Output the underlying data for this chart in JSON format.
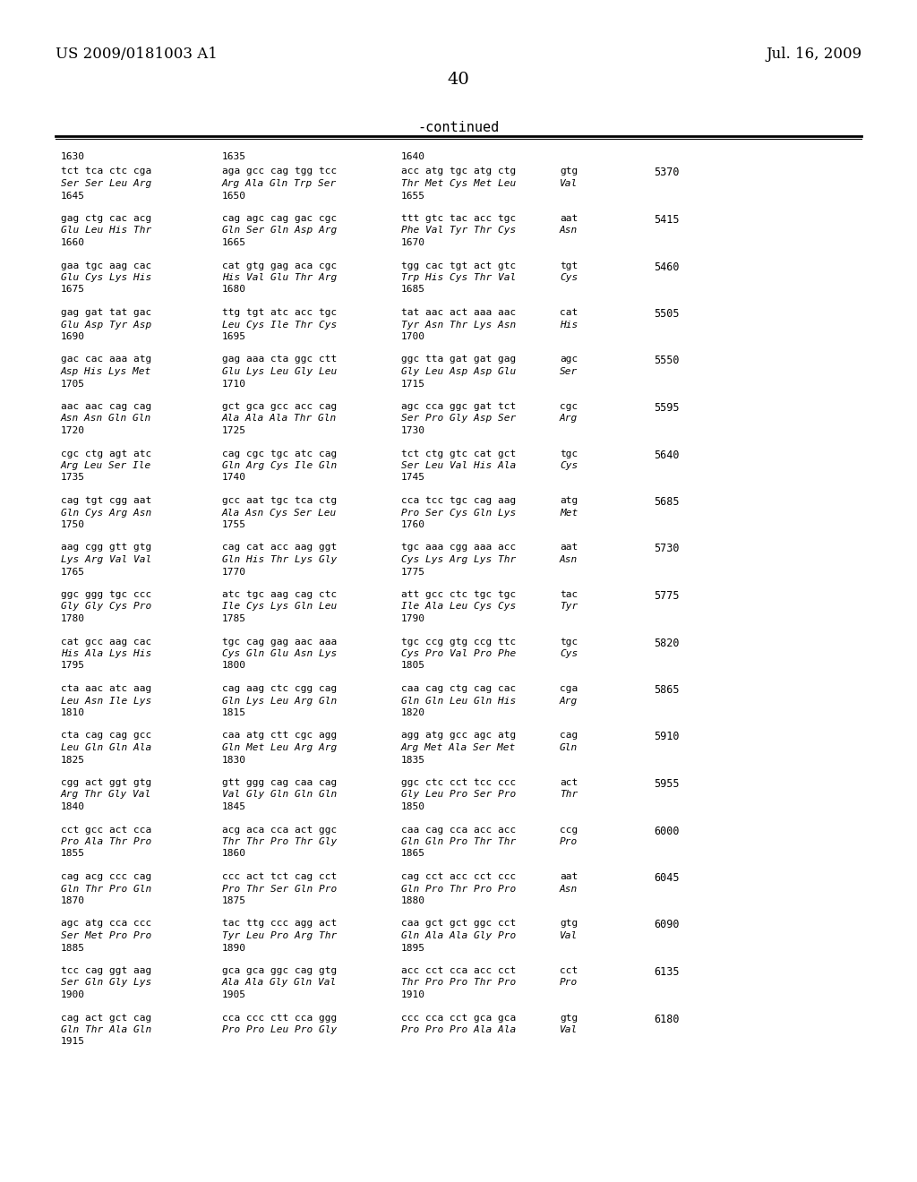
{
  "header_left": "US 2009/0181003 A1",
  "header_right": "Jul. 16, 2009",
  "page_number": "40",
  "continued_label": "-continued",
  "background_color": "#ffffff",
  "text_color": "#000000",
  "blocks": [
    {
      "pos_header": [
        "1630",
        "1635",
        "1640"
      ],
      "nuc": "tct tca ctc cga  aga gcc cag tgg tcc  acc atg tgc atg ctg  gtg",
      "aa": "Ser Ser Leu Arg  Arg Ala Gln Trp Ser  Thr Met Cys Met Leu  Val",
      "pos_footer": [
        "1645",
        "1650",
        "1655"
      ],
      "number": "5370"
    },
    {
      "pos_header": [],
      "nuc": "gag ctg cac acg  cag agc cag gac cgc  ttt gtc tac acc tgc  aat",
      "aa": "Glu Leu His Thr  Gln Ser Gln Asp Arg  Phe Val Tyr Thr Cys  Asn",
      "pos_footer": [
        "1660",
        "1665",
        "1670"
      ],
      "number": "5415"
    },
    {
      "pos_header": [],
      "nuc": "gaa tgc aag cac  cat gtg gag aca cgc  tgg cac tgt act gtc  tgt",
      "aa": "Glu Cys Lys His  His Val Glu Thr Arg  Trp His Cys Thr Val  Cys",
      "pos_footer": [
        "1675",
        "1680",
        "1685"
      ],
      "number": "5460"
    },
    {
      "pos_header": [],
      "nuc": "gag gat tat gac  ttg tgt atc acc tgc  tat aac act aaa aac  cat",
      "aa": "Glu Asp Tyr Asp  Leu Cys Ile Thr Cys  Tyr Asn Thr Lys Asn  His",
      "pos_footer": [
        "1690",
        "1695",
        "1700"
      ],
      "number": "5505"
    },
    {
      "pos_header": [],
      "nuc": "gac cac aaa atg  gag aaa cta ggc ctt  ggc tta gat gat gag  agc",
      "aa": "Asp His Lys Met  Glu Lys Leu Gly Leu  Gly Leu Asp Asp Glu  Ser",
      "pos_footer": [
        "1705",
        "1710",
        "1715"
      ],
      "number": "5550"
    },
    {
      "pos_header": [],
      "nuc": "aac aac cag cag  gct gca gcc acc cag  agc cca ggc gat tct  cgc",
      "aa": "Asn Asn Gln Gln  Ala Ala Ala Thr Gln  Ser Pro Gly Asp Ser  Arg",
      "pos_footer": [
        "1720",
        "1725",
        "1730"
      ],
      "number": "5595"
    },
    {
      "pos_header": [],
      "nuc": "cgc ctg agt atc  cag cgc tgc atc cag  tct ctg gtc cat gct  tgc",
      "aa": "Arg Leu Ser Ile  Gln Arg Cys Ile Gln  Ser Leu Val His Ala  Cys",
      "pos_footer": [
        "1735",
        "1740",
        "1745"
      ],
      "number": "5640"
    },
    {
      "pos_header": [],
      "nuc": "cag tgt cgg aat  gcc aat tgc tca ctg  cca tcc tgc cag aag  atg",
      "aa": "Gln Cys Arg Asn  Ala Asn Cys Ser Leu  Pro Ser Cys Gln Lys  Met",
      "pos_footer": [
        "1750",
        "1755",
        "1760"
      ],
      "number": "5685"
    },
    {
      "pos_header": [],
      "nuc": "aag cgg gtt gtg  cag cat acc aag ggt  tgc aaa cgg aaa acc  aat",
      "aa": "Lys Arg Val Val  Gln His Thr Lys Gly  Cys Lys Arg Lys Thr  Asn",
      "pos_footer": [
        "1765",
        "1770",
        "1775"
      ],
      "number": "5730"
    },
    {
      "pos_header": [],
      "nuc": "ggc ggg tgc ccc  atc tgc aag cag ctc  att gcc ctc tgc tgc  tac",
      "aa": "Gly Gly Cys Pro  Ile Cys Lys Gln Leu  Ile Ala Leu Cys Cys  Tyr",
      "pos_footer": [
        "1780",
        "1785",
        "1790"
      ],
      "number": "5775"
    },
    {
      "pos_header": [],
      "nuc": "cat gcc aag cac  tgc cag gag aac aaa  tgc ccg gtg ccg ttc  tgc",
      "aa": "His Ala Lys His  Cys Gln Glu Asn Lys  Cys Pro Val Pro Phe  Cys",
      "pos_footer": [
        "1795",
        "1800",
        "1805"
      ],
      "number": "5820"
    },
    {
      "pos_header": [],
      "nuc": "cta aac atc aag  cag aag ctc cgg cag  caa cag ctg cag cac  cga",
      "aa": "Leu Asn Ile Lys  Gln Lys Leu Arg Gln  Gln Gln Leu Gln His  Arg",
      "pos_footer": [
        "1810",
        "1815",
        "1820"
      ],
      "number": "5865"
    },
    {
      "pos_header": [],
      "nuc": "cta cag cag gcc  caa atg ctt cgc agg  agg atg gcc agc atg  cag",
      "aa": "Leu Gln Gln Ala  Gln Met Leu Arg Arg  Arg Met Ala Ser Met  Gln",
      "pos_footer": [
        "1825",
        "1830",
        "1835"
      ],
      "number": "5910"
    },
    {
      "pos_header": [],
      "nuc": "cgg act ggt gtg  gtt ggg cag caa cag  ggc ctc cct tcc ccc  act",
      "aa": "Arg Thr Gly Val  Val Gly Gln Gln Gln  Gly Leu Pro Ser Pro  Thr",
      "pos_footer": [
        "1840",
        "1845",
        "1850"
      ],
      "number": "5955"
    },
    {
      "pos_header": [],
      "nuc": "cct gcc act cca  acg aca cca act ggc  caa cag cca acc acc  ccg",
      "aa": "Pro Ala Thr Pro  Thr Thr Pro Thr Gly  Gln Gln Pro Thr Thr  Pro",
      "pos_footer": [
        "1855",
        "1860",
        "1865"
      ],
      "number": "6000"
    },
    {
      "pos_header": [],
      "nuc": "cag acg ccc cag  ccc act tct cag cct  cag cct acc cct ccc  aat",
      "aa": "Gln Thr Pro Gln  Pro Thr Ser Gln Pro  Gln Pro Thr Pro Pro  Asn",
      "pos_footer": [
        "1870",
        "1875",
        "1880"
      ],
      "number": "6045"
    },
    {
      "pos_header": [],
      "nuc": "agc atg cca ccc  tac ttg ccc agg act  caa gct gct ggc cct  gtg",
      "aa": "Ser Met Pro Pro  Tyr Leu Pro Arg Thr  Gln Ala Ala Gly Pro  Val",
      "pos_footer": [
        "1885",
        "1890",
        "1895"
      ],
      "number": "6090"
    },
    {
      "pos_header": [],
      "nuc": "tcc cag ggt aag  gca gca ggc cag gtg  acc cct cca acc cct  cct",
      "aa": "Ser Gln Gly Lys  Ala Ala Gly Gln Val  Thr Pro Pro Thr Pro  Pro",
      "pos_footer": [
        "1900",
        "1905",
        "1910"
      ],
      "number": "6135"
    },
    {
      "pos_header": [],
      "nuc": "cag act gct cag  cca ccc ctt cca ggg  ccc cca cct gca gca  gtg",
      "aa": "Gln Thr Ala Gln  Pro Pro Leu Pro Gly  Pro Pro Pro Ala Ala  Val",
      "pos_footer": [
        "1915"
      ],
      "number": "6180"
    }
  ]
}
